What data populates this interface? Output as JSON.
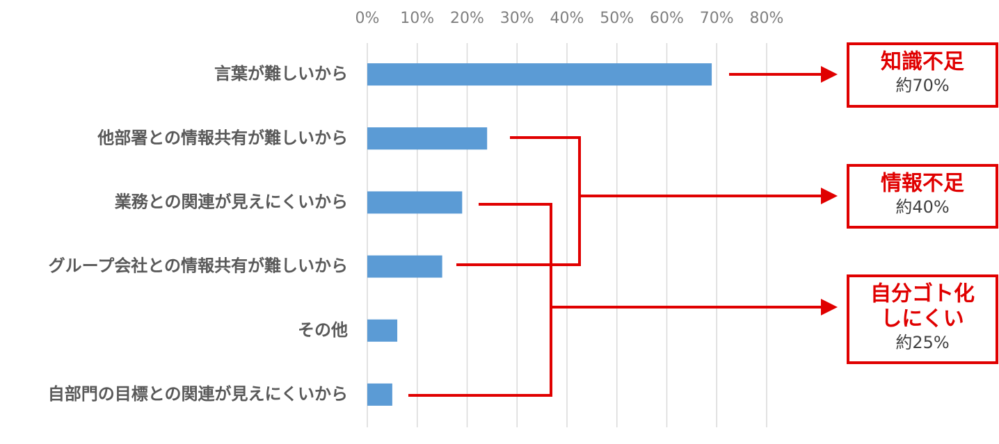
{
  "chart_data": {
    "type": "barh",
    "categories": [
      "言葉が難しいから",
      "他部署との情報共有が難しいから",
      "業務との関連が見えにくいから",
      "グループ会社との情報共有が難しいから",
      "その他",
      "自部門の目標との関連が見えにくいから"
    ],
    "values": [
      69,
      24,
      19,
      15,
      6,
      5
    ],
    "color": "#5b9bd5",
    "xlim": [
      0,
      80
    ],
    "xticks": [
      {
        "value": 0,
        "label": "0%"
      },
      {
        "value": 10,
        "label": "10%"
      },
      {
        "value": 20,
        "label": "20%"
      },
      {
        "value": 30,
        "label": "30%"
      },
      {
        "value": 40,
        "label": "40%"
      },
      {
        "value": 50,
        "label": "50%"
      },
      {
        "value": 60,
        "label": "60%"
      },
      {
        "value": 70,
        "label": "70%"
      },
      {
        "value": 80,
        "label": "80%"
      }
    ],
    "grid": true,
    "annotations": [
      {
        "lines": [
          "知識不足"
        ],
        "note": "約70%"
      },
      {
        "lines": [
          "情報不足"
        ],
        "note": "約40%"
      },
      {
        "lines": [
          "自分ゴト化",
          "しにくい"
        ],
        "note": "約25%"
      }
    ]
  }
}
